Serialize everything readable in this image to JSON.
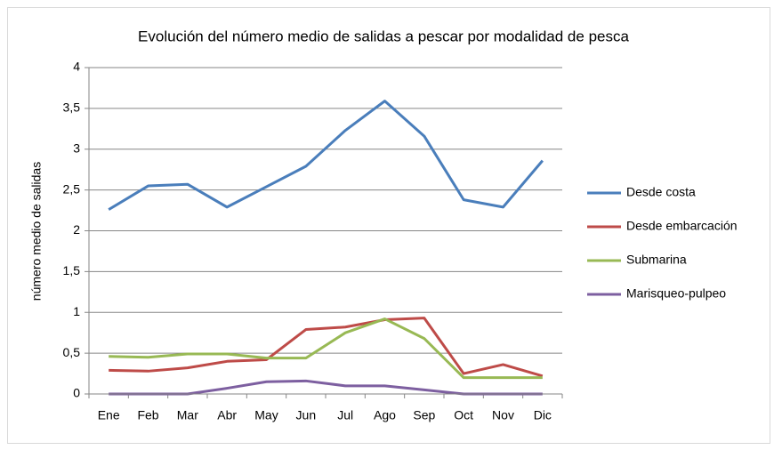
{
  "chart_data": {
    "type": "line",
    "title": "Evolución del número medio de salidas a pescar por modalidad de pesca",
    "y_label": "número medio de salidas",
    "categories": [
      "Ene",
      "Feb",
      "Mar",
      "Abr",
      "May",
      "Jun",
      "Jul",
      "Ago",
      "Sep",
      "Oct",
      "Nov",
      "Dic"
    ],
    "series": [
      {
        "name": "Desde costa",
        "color": "#4a7ebb",
        "values": [
          2.26,
          2.55,
          2.57,
          2.29,
          2.54,
          2.79,
          3.23,
          3.59,
          3.16,
          2.38,
          2.29,
          2.86
        ]
      },
      {
        "name": "Desde embarcación",
        "color": "#be4b48",
        "values": [
          0.29,
          0.28,
          0.32,
          0.4,
          0.42,
          0.79,
          0.82,
          0.91,
          0.93,
          0.25,
          0.36,
          0.22
        ]
      },
      {
        "name": "Submarina",
        "color": "#98b954",
        "values": [
          0.46,
          0.45,
          0.49,
          0.49,
          0.44,
          0.44,
          0.75,
          0.92,
          0.68,
          0.2,
          0.2,
          0.2
        ]
      },
      {
        "name": "Marisqueo-pulpeo",
        "color": "#7d5fa0",
        "values": [
          0,
          0,
          0,
          0.07,
          0.15,
          0.16,
          0.1,
          0.1,
          0.05,
          0,
          0,
          0
        ]
      }
    ],
    "ylim": [
      0,
      4
    ],
    "yticks": [
      0,
      {
        "value": 0.5,
        "label": "0,5"
      },
      1,
      {
        "value": 1.5,
        "label": "1,5"
      },
      2,
      {
        "value": 2.5,
        "label": "2,5"
      },
      3,
      {
        "value": 3.5,
        "label": "3,5"
      },
      4
    ],
    "grid": true,
    "legend": "right"
  }
}
